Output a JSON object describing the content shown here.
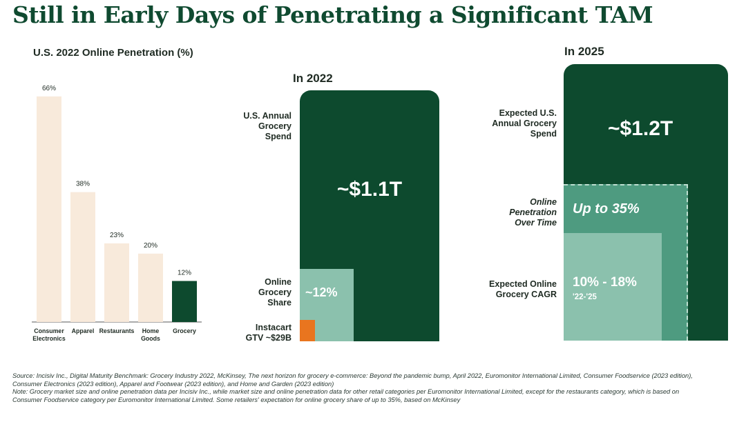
{
  "title": "Still in Early Days of Penetrating a Significant TAM",
  "colors": {
    "dark_green": "#0d4a2e",
    "mid_green": "#4e9b80",
    "light_green": "#8bc1ad",
    "orange": "#e9751f",
    "bar_cream": "#f8eadb",
    "text_dark": "#1e2a22"
  },
  "chart_data": {
    "type": "bar",
    "title": "U.S. 2022 Online Penetration (%)",
    "categories": [
      "Consumer Electronics",
      "Apparel",
      "Restaurants",
      "Home Goods",
      "Grocery"
    ],
    "category_lines": [
      [
        "Consumer",
        "Electronics"
      ],
      [
        "Apparel"
      ],
      [
        "Restaurants"
      ],
      [
        "Home",
        "Goods"
      ],
      [
        "Grocery"
      ]
    ],
    "values": [
      66,
      38,
      23,
      20,
      12
    ],
    "value_labels": [
      "66%",
      "38%",
      "23%",
      "20%",
      "12%"
    ],
    "highlight_index": 4,
    "ylim": [
      0,
      70
    ],
    "grid": false,
    "legend": "none"
  },
  "panel_2022": {
    "title": "In 2022",
    "spend_label": "U.S. Annual Grocery Spend",
    "spend_value": "~$1.1T",
    "online_label": "Online Grocery Share",
    "online_value": "~12%",
    "instacart_label": "Instacart GTV ~$29B"
  },
  "panel_2025": {
    "title": "In 2025",
    "spend_label": "Expected U.S. Annual Grocery Spend",
    "spend_value": "~$1.2T",
    "penetration_label": "Online Penetration Over Time",
    "penetration_value": "Up to 35%",
    "cagr_label": "Expected Online Grocery CAGR",
    "cagr_value": "10% - 18%",
    "cagr_period": "'22-'25"
  },
  "source": {
    "line1": "Source: Incisiv Inc., Digital Maturity Benchmark: Grocery Industry 2022, McKinsey, The next horizon for grocery e-commerce: Beyond the pandemic bump, April 2022, Euromonitor International Limited, Consumer Foodservice (2023 edition), Consumer Electronics (2023 edition), Apparel and Footwear (2023 edition), and Home and Garden (2023 edition)",
    "line2": "Note: Grocery market size and online penetration data per Incisiv Inc., while market size and online penetration data for other retail categories per Euromonitor International Limited, except for the restaurants category, which is based on Consumer Foodservice category per Euromonitor International Limited. Some retailers' expectation for online grocery share of up to 35%, based on McKinsey"
  }
}
